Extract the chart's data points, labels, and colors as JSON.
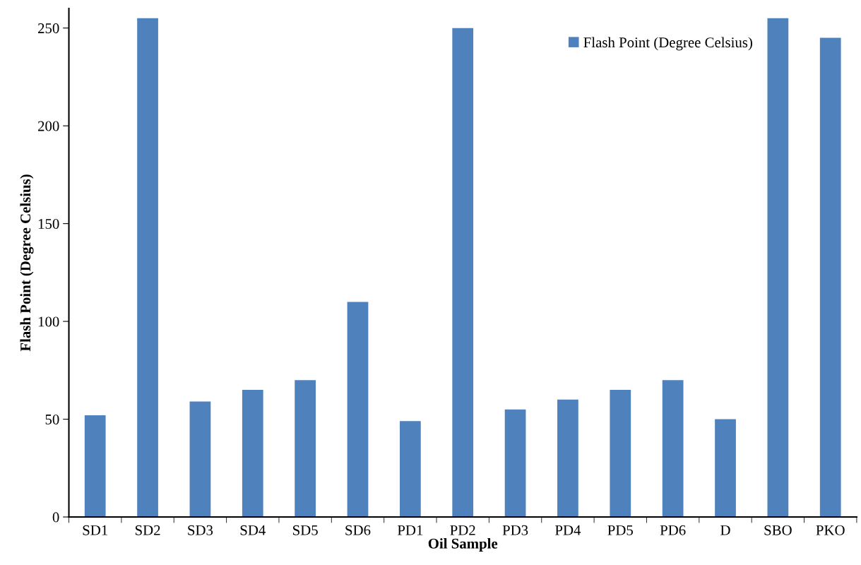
{
  "chart_data": {
    "type": "bar",
    "categories": [
      "SD1",
      "SD2",
      "SD3",
      "SD4",
      "SD5",
      "SD6",
      "PD1",
      "PD2",
      "PD3",
      "PD4",
      "PD5",
      "PD6",
      "D",
      "SBO",
      "PKO"
    ],
    "series": [
      {
        "name": "Flash Point (Degree Celsius)",
        "color": "#4f81bd",
        "values": [
          52,
          255,
          59,
          65,
          70,
          110,
          49,
          250,
          55,
          60,
          65,
          70,
          50,
          255,
          245
        ]
      }
    ],
    "xlabel": "Oil Sample",
    "ylabel": "Flash Point (Degree Celsius)",
    "ylim": [
      0,
      260
    ],
    "yticks": [
      0,
      50,
      100,
      150,
      200,
      250
    ],
    "grid": false,
    "legend": "top right"
  }
}
